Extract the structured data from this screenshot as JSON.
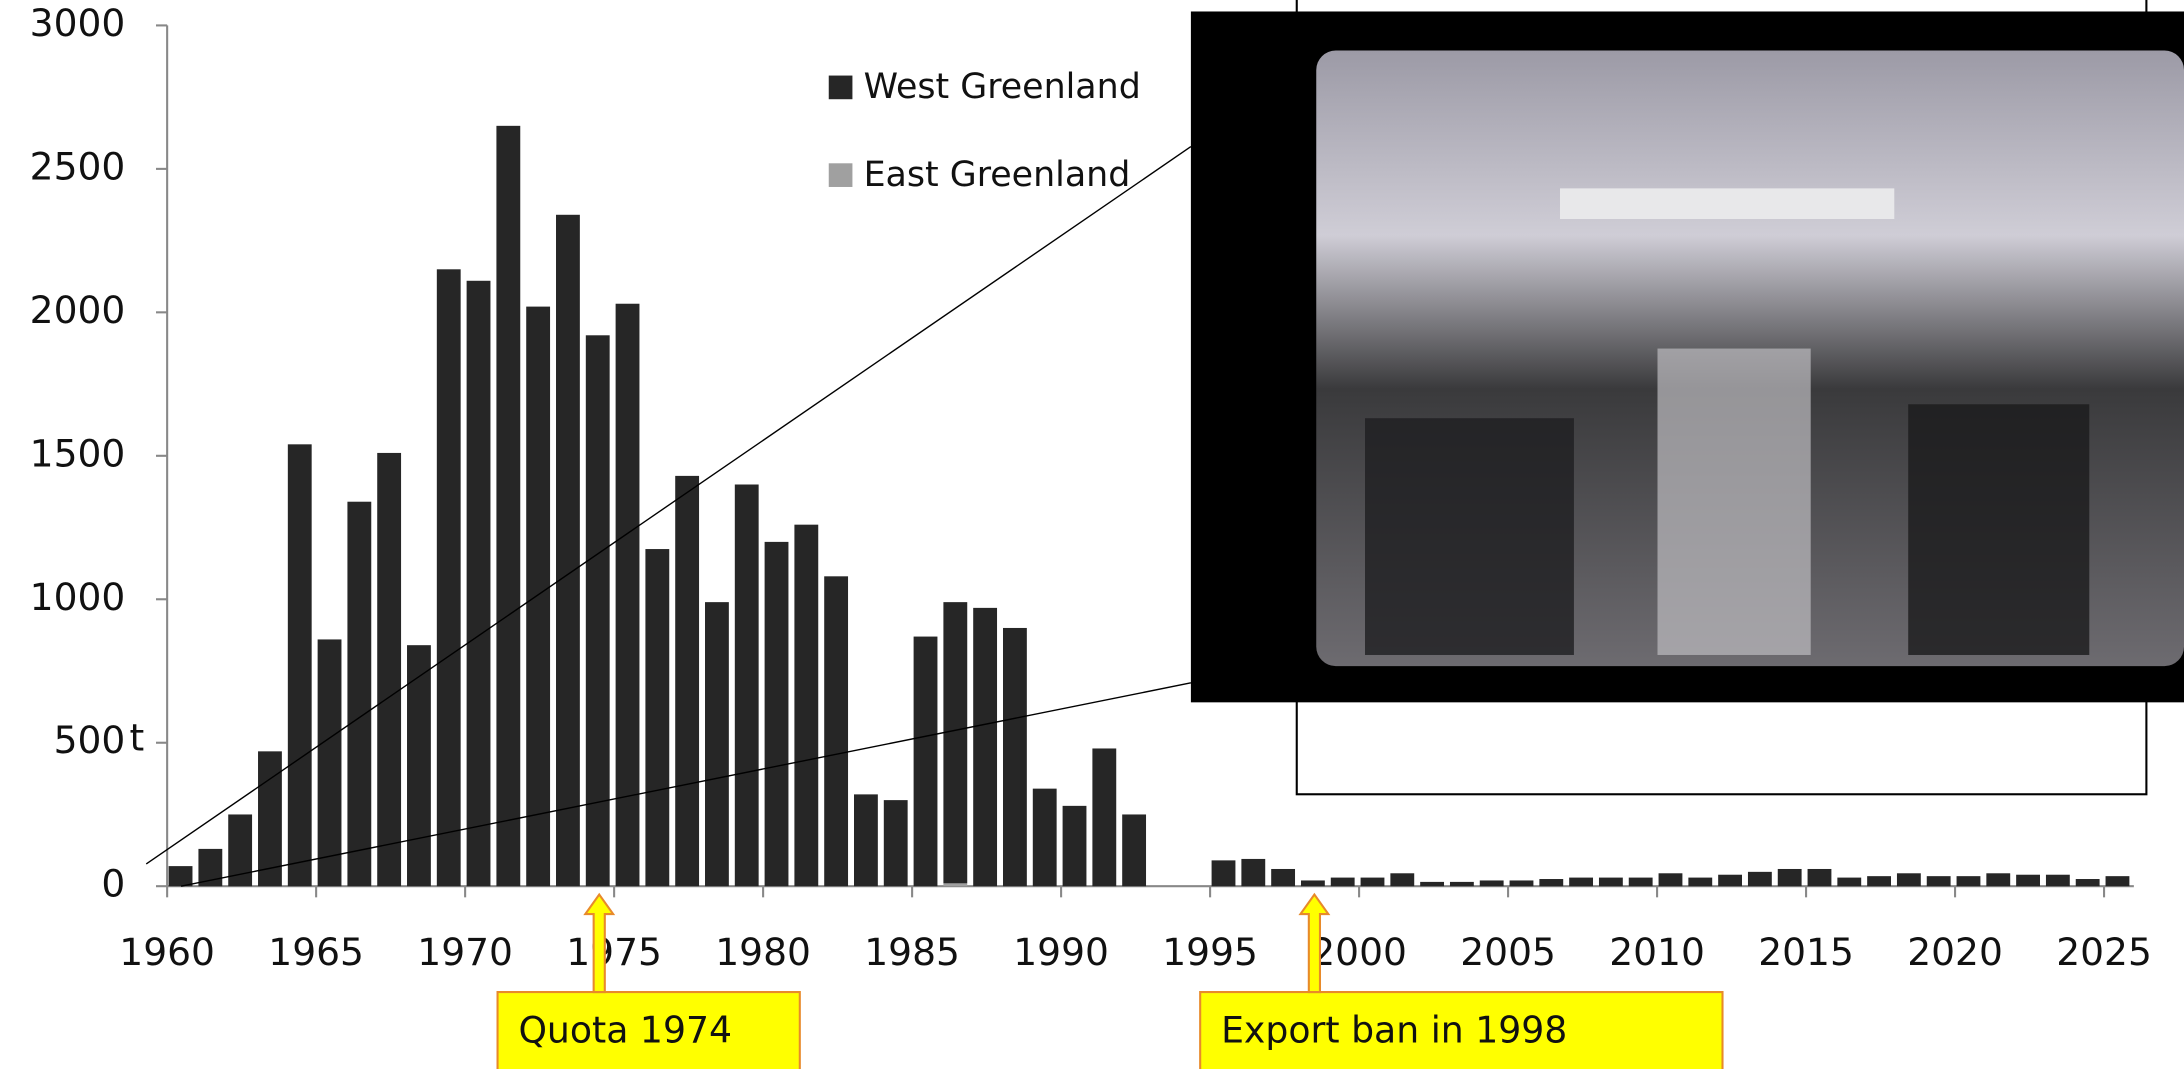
{
  "chart_data": {
    "type": "bar",
    "x": [
      1960,
      1961,
      1962,
      1963,
      1964,
      1965,
      1966,
      1967,
      1968,
      1969,
      1970,
      1971,
      1972,
      1973,
      1974,
      1975,
      1976,
      1977,
      1978,
      1979,
      1980,
      1981,
      1982,
      1983,
      1984,
      1985,
      1986,
      1987,
      1988,
      1989,
      1990,
      1991,
      1992,
      1993,
      1994,
      1995,
      1996,
      1997,
      1998,
      1999,
      2000,
      2001,
      2002,
      2003,
      2004,
      2005,
      2006,
      2007,
      2008,
      2009,
      2010,
      2011,
      2012,
      2013,
      2014,
      2015,
      2016,
      2017,
      2018,
      2019,
      2020,
      2021,
      2022,
      2023,
      2024,
      2025
    ],
    "series": [
      {
        "name": "East Greenland",
        "color": "#a0a0a0",
        "values": [
          0,
          0,
          0,
          0,
          0,
          0,
          0,
          0,
          0,
          0,
          0,
          0,
          0,
          0,
          0,
          0,
          0,
          0,
          0,
          0,
          0,
          0,
          0,
          0,
          0,
          0,
          10,
          0,
          0,
          0,
          0,
          0,
          0,
          0,
          0,
          0,
          0,
          0,
          0,
          0,
          0,
          0,
          0,
          0,
          0,
          0,
          0,
          0,
          0,
          0,
          0,
          0,
          0,
          0,
          0,
          0,
          0,
          0,
          0,
          0,
          0,
          0,
          0,
          0,
          0,
          0
        ]
      },
      {
        "name": "West Greenland",
        "color": "#262626",
        "values": [
          70,
          130,
          250,
          470,
          1540,
          860,
          1340,
          1510,
          840,
          2150,
          2110,
          2650,
          2020,
          2340,
          1920,
          2030,
          1175,
          1430,
          990,
          1400,
          1200,
          1260,
          1080,
          320,
          300,
          870,
          980,
          970,
          900,
          340,
          280,
          480,
          250,
          0,
          0,
          90,
          95,
          60,
          20,
          30,
          30,
          45,
          15,
          15,
          20,
          20,
          25,
          30,
          30,
          30,
          45,
          30,
          40,
          50,
          60,
          60,
          30,
          35,
          45,
          35,
          35,
          45,
          40,
          40,
          25,
          35
        ]
      }
    ],
    "xlim": [
      1960,
      2026
    ],
    "xticks": [
      1960,
      1965,
      1970,
      1975,
      1980,
      1985,
      1990,
      1995,
      2000,
      2005,
      2010,
      2015,
      2020,
      2025
    ],
    "ylim": [
      0,
      3000
    ],
    "yticks": [
      0,
      500,
      1000,
      1500,
      2000,
      2500,
      3000
    ],
    "y_unit": "t",
    "annotations": [
      {
        "text": "Quota 1974",
        "x": 1974
      },
      {
        "text": "Export ban in 1998",
        "x": 1998
      }
    ]
  }
}
